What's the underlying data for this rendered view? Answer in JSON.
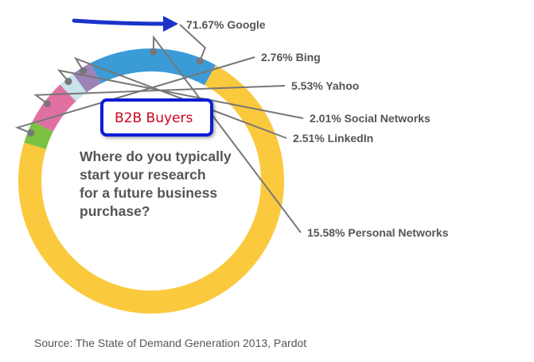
{
  "chart_data": {
    "type": "pie",
    "style": "donut",
    "slices": [
      {
        "label": "Google",
        "value": 71.67,
        "display": "71.67% Google",
        "color": "#fbc93d"
      },
      {
        "label": "Bing",
        "value": 2.76,
        "display": "2.76% Bing",
        "color": "#7dc142"
      },
      {
        "label": "Yahoo",
        "value": 5.53,
        "display": "5.53% Yahoo",
        "color": "#e070a2"
      },
      {
        "label": "Social Networks",
        "value": 2.01,
        "display": "2.01% Social Networks",
        "color": "#c8e3ea"
      },
      {
        "label": "LinkedIn",
        "value": 2.51,
        "display": "2.51% LinkedIn",
        "color": "#9b82b7"
      },
      {
        "label": "Personal Networks",
        "value": 15.58,
        "display": "15.58% Personal Networks",
        "color": "#3a9bd7"
      }
    ],
    "question_lines": [
      "Where do you typically",
      "start your research",
      "for a future business",
      "purchase?"
    ],
    "badge": "B2B Buyers",
    "source": "Source: The State of Demand Generation 2013, Pardot"
  },
  "colors": {
    "badge_border": "#0a1fd6",
    "badge_text": "#d0021b",
    "arrow": "#1a33c8",
    "leader_line": "#777777",
    "text": "#555555"
  }
}
